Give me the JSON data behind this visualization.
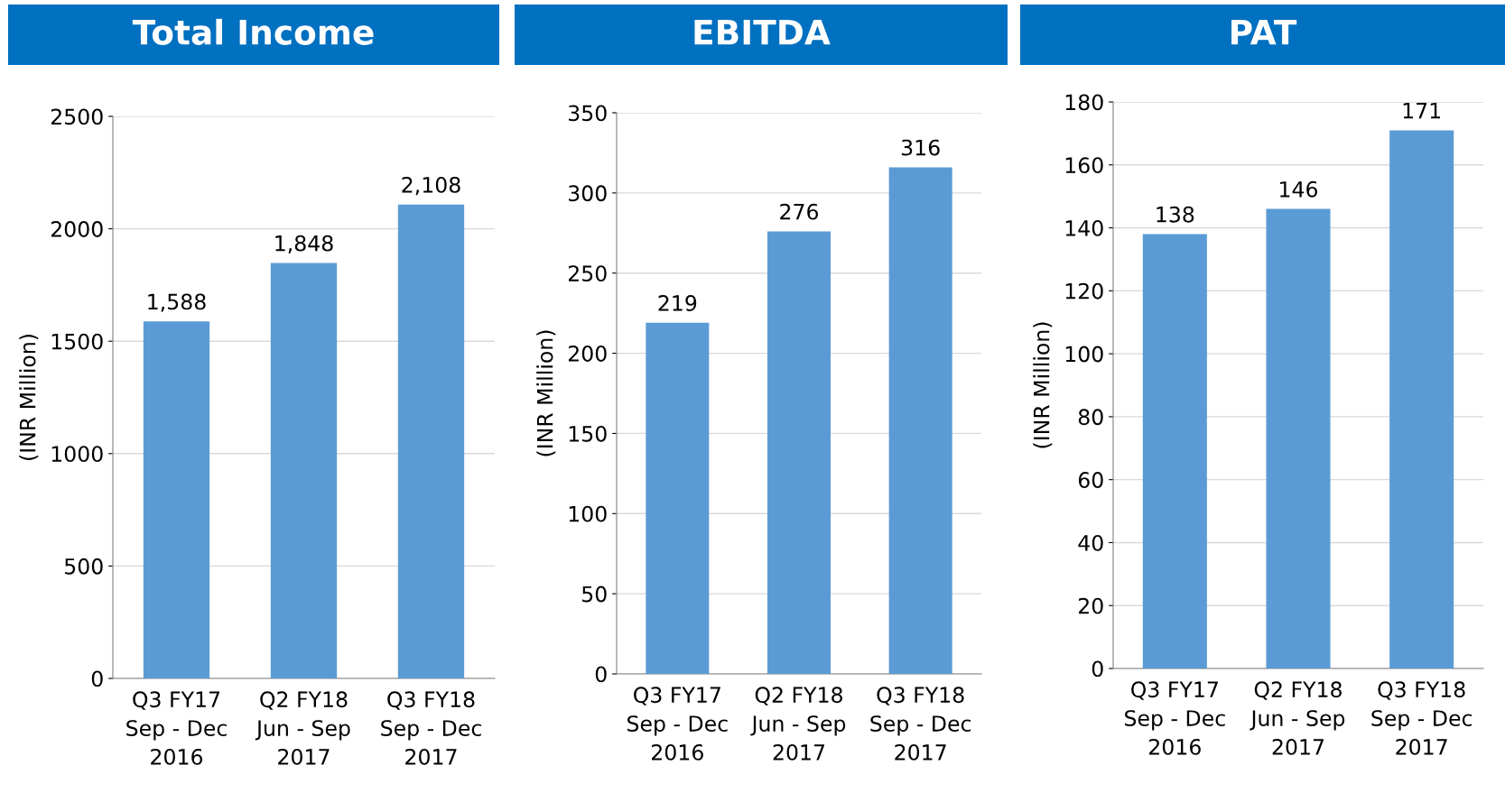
{
  "chart_data": [
    {
      "type": "bar",
      "title": "Total Income",
      "ylabel": "(INR Million)",
      "categories": [
        "Q3 FY17\nSep - Dec\n2016",
        "Q2 FY18\nJun - Sep\n2017",
        "Q3 FY18\nSep - Dec\n2017"
      ],
      "values": [
        1588,
        1848,
        2108
      ],
      "value_labels": [
        "1,588",
        "1,848",
        "2,108"
      ],
      "color": "#5b9bd5",
      "ylim": [
        0,
        2500
      ],
      "yticks": [
        0,
        500,
        1000,
        1500,
        2000,
        2500
      ],
      "grid": "y"
    },
    {
      "type": "bar",
      "title": "EBITDA",
      "ylabel": "(INR Million)",
      "categories": [
        "Q3 FY17\nSep - Dec\n2016",
        "Q2 FY18\nJun - Sep\n2017",
        "Q3 FY18\nSep - Dec\n2017"
      ],
      "values": [
        219,
        276,
        316
      ],
      "value_labels": [
        "219",
        "276",
        "316"
      ],
      "color": "#5b9bd5",
      "ylim": [
        0,
        350
      ],
      "yticks": [
        0,
        50,
        100,
        150,
        200,
        250,
        300,
        350
      ],
      "grid": "y"
    },
    {
      "type": "bar",
      "title": "PAT",
      "ylabel": "(INR Million)",
      "categories": [
        "Q3 FY17\nSep - Dec\n2016",
        "Q2 FY18\nJun - Sep\n2017",
        "Q3 FY18\nSep - Dec\n2017"
      ],
      "values": [
        138,
        146,
        171
      ],
      "value_labels": [
        "138",
        "146",
        "171"
      ],
      "color": "#5b9bd5",
      "ylim": [
        0,
        180
      ],
      "yticks": [
        0,
        20,
        40,
        60,
        80,
        100,
        120,
        140,
        160,
        180
      ],
      "grid": "y"
    }
  ]
}
